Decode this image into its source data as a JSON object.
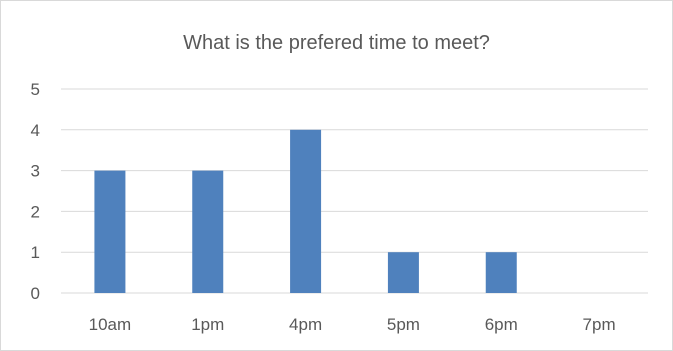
{
  "chart_data": {
    "type": "bar",
    "title": "What is the prefered time to meet?",
    "categories": [
      "10am",
      "1pm",
      "4pm",
      "5pm",
      "6pm",
      "7pm"
    ],
    "values": [
      3,
      3,
      4,
      1,
      1,
      0
    ],
    "ylim": [
      0,
      5
    ],
    "yticks": [
      0,
      1,
      2,
      3,
      4,
      5
    ],
    "xlabel": "",
    "ylabel": "",
    "grid": true,
    "bar_color": "#4f81bd",
    "grid_color": "#d9d9d9"
  }
}
